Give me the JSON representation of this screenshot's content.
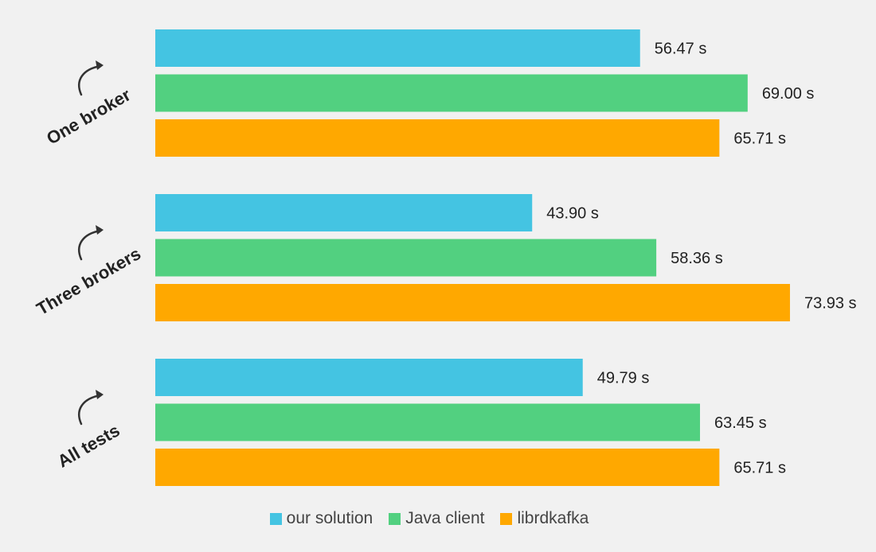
{
  "chart_data": {
    "type": "bar",
    "orientation": "horizontal",
    "categories": [
      "One broker",
      "Three brokers",
      "All tests"
    ],
    "series": [
      {
        "name": "our solution",
        "color": "#44c4e2",
        "values": [
          56.47,
          43.9,
          49.79
        ],
        "labels": [
          "56.47 s",
          "43.90 s",
          "49.79 s"
        ]
      },
      {
        "name": "Java client",
        "color": "#52d080",
        "values": [
          69.0,
          58.36,
          63.45
        ],
        "labels": [
          "69.00 s",
          "58.36 s",
          "63.45 s"
        ]
      },
      {
        "name": "librdkafka",
        "color": "#ffa800",
        "values": [
          65.71,
          73.93,
          65.71
        ],
        "labels": [
          "65.71 s",
          "73.93 s",
          "65.71 s"
        ]
      }
    ],
    "xlim": [
      0,
      80
    ],
    "grid": false,
    "legend_position": "bottom",
    "unit": "s",
    "title": "",
    "xlabel": "",
    "ylabel": ""
  }
}
